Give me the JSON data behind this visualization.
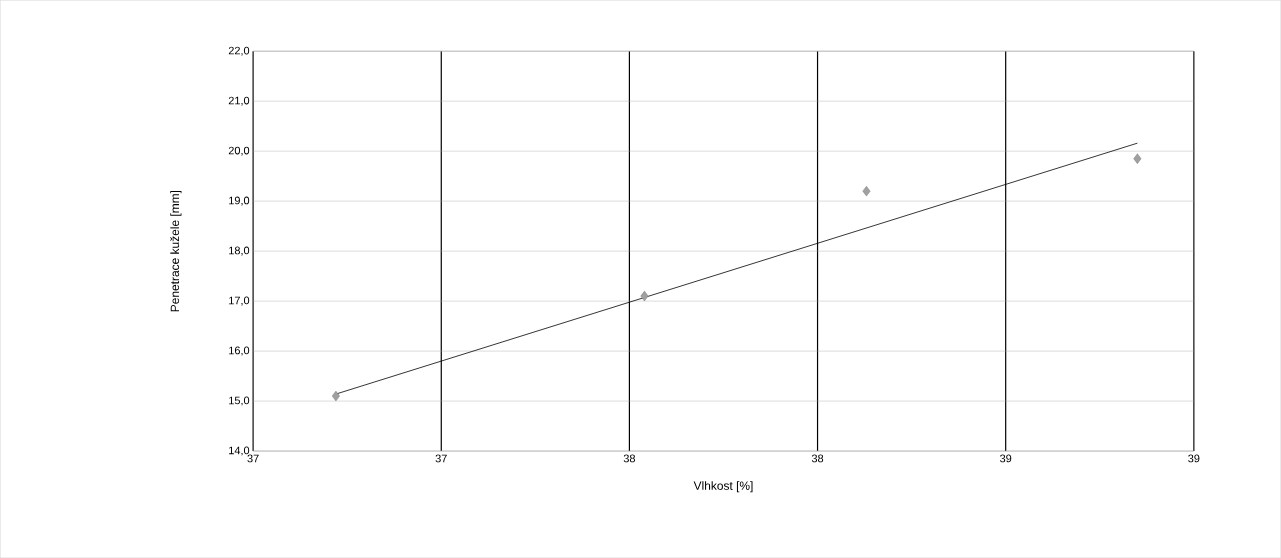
{
  "chart_data": {
    "type": "scatter",
    "xlabel": "Vlhkost [%]",
    "ylabel": "Penetrace kužele [mm]",
    "series": [
      {
        "color": "#a0a0a0",
        "marker": "diamond",
        "x": [
          36.72,
          37.54,
          38.13,
          38.85
        ],
        "values": [
          15.1,
          17.1,
          19.2,
          19.85
        ]
      },
      {
        "type": "line",
        "color": "#000000",
        "marker": "none",
        "x": [
          36.72,
          38.85
        ],
        "values": [
          15.14,
          20.16
        ]
      }
    ],
    "xlim": [
      36.5,
      39.0
    ],
    "xticks": [
      {
        "value": 36.5,
        "label": "37"
      },
      {
        "value": 37.0,
        "label": "37"
      },
      {
        "value": 37.5,
        "label": "38"
      },
      {
        "value": 38.0,
        "label": "38"
      },
      {
        "value": 38.5,
        "label": "39"
      },
      {
        "value": 39.0,
        "label": "39"
      }
    ],
    "ylim": [
      14,
      22
    ],
    "yticks": [
      {
        "value": 14,
        "label": "14,0"
      },
      {
        "value": 15,
        "label": "15,0"
      },
      {
        "value": 16,
        "label": "16,0"
      },
      {
        "value": 17,
        "label": "17,0"
      },
      {
        "value": 18,
        "label": "18,0"
      },
      {
        "value": 19,
        "label": "19,0"
      },
      {
        "value": 20,
        "label": "20,0"
      },
      {
        "value": 21,
        "label": "21,0"
      },
      {
        "value": 22,
        "label": "22,0"
      }
    ],
    "grid": true
  }
}
